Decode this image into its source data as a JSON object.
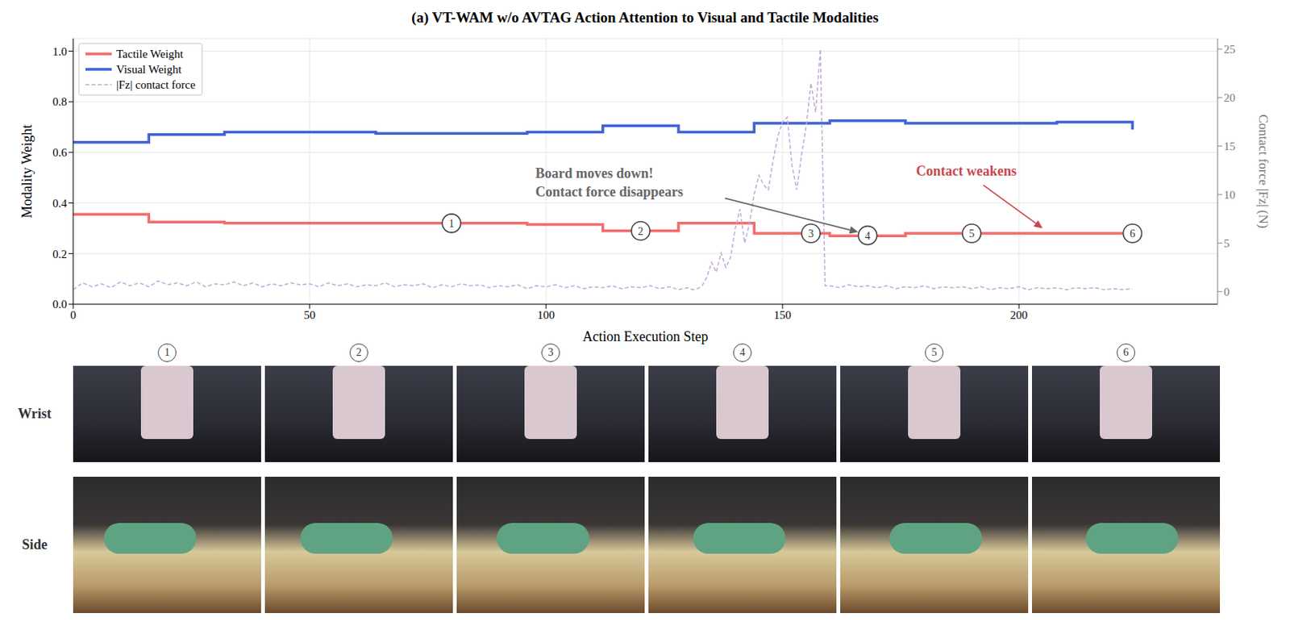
{
  "chart_data": {
    "type": "line",
    "title": "(a) VT-WAM w/o AVTAG Action Attention to Visual and Tactile Modalities",
    "x_label": "Action Execution Step",
    "y_label": "Modality Weight",
    "y2_label": "Contact force |Fz| (N)",
    "xlim": [
      0,
      242
    ],
    "xticks": [
      0,
      50,
      100,
      150,
      200
    ],
    "ylim": [
      0,
      1.05
    ],
    "yticks": [
      {
        "value": 0,
        "label": "0.0"
      },
      0.2,
      0.4,
      0.6,
      0.8,
      {
        "value": 1,
        "label": "1.0"
      }
    ],
    "y2lim": [
      -1.3,
      26.1
    ],
    "y2ticks": [
      0,
      5,
      10,
      15,
      20,
      25
    ],
    "grid": true,
    "legend": "upper left",
    "series": [
      {
        "name": "Tactile Weight",
        "color": "#f46b6b",
        "line_style": "steps",
        "x": [
          0,
          16,
          32,
          48,
          64,
          80,
          96,
          112,
          128,
          144,
          160,
          176,
          192,
          208,
          224
        ],
        "values": [
          0.355,
          0.325,
          0.32,
          0.32,
          0.32,
          0.32,
          0.315,
          0.29,
          0.32,
          0.28,
          0.27,
          0.28,
          0.28,
          0.28,
          0.28
        ]
      },
      {
        "name": "Visual Weight",
        "color": "#3e64d6",
        "line_style": "steps",
        "x": [
          0,
          16,
          32,
          48,
          64,
          80,
          96,
          112,
          128,
          144,
          160,
          176,
          192,
          208,
          224
        ],
        "values": [
          0.64,
          0.67,
          0.68,
          0.68,
          0.675,
          0.675,
          0.68,
          0.705,
          0.68,
          0.715,
          0.725,
          0.715,
          0.715,
          0.72,
          0.69
        ]
      },
      {
        "name": "|Fz| contact force",
        "color": "#c3a9d6",
        "line_style": "dashed",
        "axis": "y2",
        "x": [
          0,
          2,
          4,
          6,
          8,
          10,
          12,
          14,
          16,
          18,
          20,
          22,
          24,
          26,
          28,
          30,
          32,
          34,
          36,
          38,
          40,
          42,
          44,
          46,
          48,
          50,
          52,
          54,
          56,
          58,
          60,
          62,
          64,
          66,
          68,
          70,
          72,
          74,
          76,
          78,
          80,
          82,
          84,
          86,
          88,
          90,
          92,
          94,
          96,
          98,
          100,
          102,
          104,
          106,
          108,
          110,
          112,
          114,
          116,
          118,
          120,
          122,
          124,
          126,
          128,
          130,
          131,
          132,
          133,
          134,
          135,
          136,
          137,
          138,
          139,
          140,
          141,
          142,
          143,
          144,
          145,
          146,
          147,
          148,
          149,
          150,
          151,
          152,
          153,
          154,
          155,
          156,
          157,
          158,
          159,
          160,
          162,
          164,
          166,
          168,
          170,
          172,
          174,
          176,
          178,
          180,
          182,
          184,
          186,
          188,
          190,
          192,
          194,
          196,
          198,
          200,
          202,
          204,
          206,
          208,
          210,
          212,
          214,
          216,
          218,
          220,
          222,
          224
        ],
        "values": [
          0.2,
          0.9,
          0.5,
          0.8,
          0.4,
          1.0,
          0.6,
          0.9,
          0.5,
          1.1,
          0.7,
          0.9,
          0.6,
          1.0,
          0.5,
          0.8,
          0.7,
          1.0,
          0.6,
          0.9,
          0.5,
          0.8,
          0.6,
          0.9,
          0.7,
          0.8,
          0.5,
          0.9,
          0.6,
          0.8,
          0.5,
          0.7,
          0.6,
          0.9,
          0.5,
          0.7,
          0.6,
          0.8,
          0.4,
          0.7,
          0.5,
          0.8,
          0.6,
          0.7,
          0.4,
          0.6,
          0.5,
          0.7,
          0.3,
          0.6,
          0.5,
          0.7,
          0.4,
          0.6,
          0.3,
          0.5,
          0.4,
          0.6,
          0.3,
          0.5,
          0.4,
          0.6,
          0.3,
          0.5,
          0.2,
          0.4,
          0.2,
          0.3,
          0.6,
          1.5,
          3.0,
          2.0,
          4.0,
          2.5,
          3.5,
          6.5,
          8.5,
          5.0,
          7.0,
          10.0,
          12.0,
          11.0,
          10.5,
          13.5,
          16.0,
          17.5,
          18.0,
          13.0,
          10.5,
          14.0,
          17.0,
          21.5,
          18.5,
          25.0,
          0.6,
          0.6,
          0.4,
          0.7,
          0.5,
          0.6,
          0.4,
          0.6,
          0.3,
          0.5,
          0.4,
          0.6,
          0.3,
          0.5,
          0.4,
          0.5,
          0.3,
          0.5,
          0.2,
          0.4,
          0.3,
          0.5,
          0.2,
          0.4,
          0.3,
          0.4,
          0.2,
          0.4,
          0.3,
          0.4,
          0.2,
          0.3,
          0.2,
          0.3
        ]
      }
    ],
    "markers": [
      {
        "label": "1",
        "x": 80,
        "y": 0.32
      },
      {
        "label": "2",
        "x": 120,
        "y": 0.29
      },
      {
        "label": "3",
        "x": 156,
        "y": 0.28
      },
      {
        "label": "4",
        "x": 168,
        "y": 0.272
      },
      {
        "label": "5",
        "x": 190,
        "y": 0.28
      },
      {
        "label": "6",
        "x": 224,
        "y": 0.28
      }
    ],
    "annotations": [
      {
        "lines": [
          "Board moves down!",
          "Contact force disappears"
        ],
        "color": "#666666",
        "x": 166,
        "y": 0.285
      },
      {
        "lines": [
          "Contact weakens"
        ],
        "color": "#c8474f",
        "x": 205,
        "y": 0.3
      }
    ]
  },
  "panels": {
    "columns": [
      "1",
      "2",
      "3",
      "4",
      "5",
      "6"
    ],
    "rows": [
      "Wrist",
      "Side"
    ]
  }
}
